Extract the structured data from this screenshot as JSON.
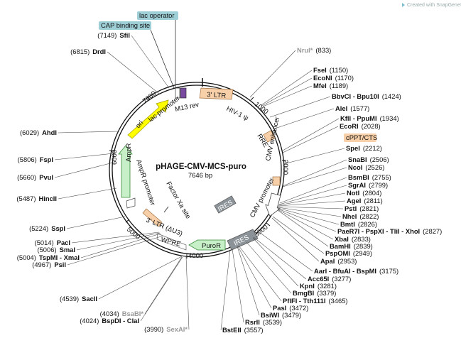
{
  "plasmid": {
    "name": "pHAGE-CMV-MCS-puro",
    "size": "7646 bp"
  },
  "watermark": {
    "text": "Created with SnapGene®"
  },
  "ticks": [
    "1000",
    "2000",
    "3000",
    "4000",
    "5000",
    "6000",
    "7000"
  ],
  "boxes": [
    {
      "text": "lac operator",
      "color": "#9fcfd6"
    },
    {
      "text": "CAP binding site",
      "color": "#9fcfd6"
    },
    {
      "text": "cPPT/CTS",
      "color": "#f7cfa8"
    }
  ],
  "features": [
    {
      "text": "3' LTR",
      "type": "ltr"
    },
    {
      "text": "HIV-1 ψ",
      "type": "misc"
    },
    {
      "text": "RRE",
      "type": "misc"
    },
    {
      "text": "CMV enhancer",
      "type": "enh"
    },
    {
      "text": "CMV promoter",
      "type": "prom"
    },
    {
      "text": "IRES",
      "type": "ires"
    },
    {
      "text": "IRES",
      "type": "ires"
    },
    {
      "text": "PuroR",
      "type": "marker"
    },
    {
      "text": "WPRE",
      "type": "misc"
    },
    {
      "text": "3' LTR (ΔU3)",
      "type": "ltr"
    },
    {
      "text": "Factor Xa site",
      "type": "misc"
    },
    {
      "text": "AmpR promoter",
      "type": "prom"
    },
    {
      "text": "AmpR",
      "type": "marker"
    },
    {
      "text": "ori",
      "type": "ori"
    },
    {
      "text": "lac promoter",
      "type": "prom"
    },
    {
      "text": "M13 rev",
      "type": "misc"
    }
  ],
  "left_sites": [
    {
      "name": "SfiI",
      "pos": "(7149)",
      "grey": false
    },
    {
      "name": "DrdI",
      "pos": "(6815)",
      "grey": false
    },
    {
      "name": "AhdI",
      "pos": "(6029)",
      "grey": false
    },
    {
      "name": "FspI",
      "pos": "(5806)",
      "grey": false
    },
    {
      "name": "PvuI",
      "pos": "(5660)",
      "grey": false
    },
    {
      "name": "HincII",
      "pos": "(5487)",
      "grey": false
    },
    {
      "name": "SspI",
      "pos": "(5224)",
      "grey": false
    },
    {
      "name": "PacI",
      "pos": "(5014)",
      "grey": false
    },
    {
      "name": "SmaI",
      "pos": "(5006)",
      "grey": false
    },
    {
      "name": "TspMI - XmaI",
      "pos": "(5004)",
      "grey": false
    },
    {
      "name": "PsiI",
      "pos": "(4967)",
      "grey": false
    },
    {
      "name": "SacII",
      "pos": "(4539)",
      "grey": false
    },
    {
      "name": "BsaBI*",
      "pos": "(4034)",
      "grey": true
    },
    {
      "name": "BspDI - ClaI",
      "pos": "(4024)",
      "grey": false
    },
    {
      "name": "SexAI*",
      "pos": "(3990)",
      "grey": true
    }
  ],
  "right_sites": [
    {
      "name": "NruI*",
      "pos": "(833)",
      "grey": true
    },
    {
      "name": "FseI",
      "pos": "(1150)",
      "grey": false
    },
    {
      "name": "EcoNI",
      "pos": "(1170)",
      "grey": false
    },
    {
      "name": "MfeI",
      "pos": "(1189)",
      "grey": false
    },
    {
      "name": "BbvCI - Bpu10I",
      "pos": "(1424)",
      "grey": false
    },
    {
      "name": "AleI",
      "pos": "(1577)",
      "grey": false
    },
    {
      "name": "KflI - PpuMI",
      "pos": "(1934)",
      "grey": false
    },
    {
      "name": "EcoRI",
      "pos": "(2028)",
      "grey": false
    },
    {
      "name": "SpeI",
      "pos": "(2212)",
      "grey": false
    },
    {
      "name": "SnaBI",
      "pos": "(2506)",
      "grey": false
    },
    {
      "name": "NcoI",
      "pos": "(2526)",
      "grey": false
    },
    {
      "name": "BsmBI",
      "pos": "(2755)",
      "grey": false
    },
    {
      "name": "SgrAI",
      "pos": "(2799)",
      "grey": false
    },
    {
      "name": "NotI",
      "pos": "(2804)",
      "grey": false
    },
    {
      "name": "AgeI",
      "pos": "(2811)",
      "grey": false
    },
    {
      "name": "PstI",
      "pos": "(2821)",
      "grey": false
    },
    {
      "name": "NheI",
      "pos": "(2822)",
      "grey": false
    },
    {
      "name": "BmtI",
      "pos": "(2826)",
      "grey": false
    },
    {
      "name": "PaeR7I - PspXI - TliI - XhoI",
      "pos": "(2827)",
      "grey": false
    },
    {
      "name": "XbaI",
      "pos": "(2833)",
      "grey": false
    },
    {
      "name": "BamHI",
      "pos": "(2839)",
      "grey": false
    },
    {
      "name": "PspOMI",
      "pos": "(2949)",
      "grey": false
    },
    {
      "name": "ApaI",
      "pos": "(2953)",
      "grey": false
    },
    {
      "name": "AarI - BfuAI - BspMI",
      "pos": "(3175)",
      "grey": false
    },
    {
      "name": "Acc65I",
      "pos": "(3277)",
      "grey": false
    },
    {
      "name": "KpnI",
      "pos": "(3281)",
      "grey": false
    },
    {
      "name": "BmgBI",
      "pos": "(3379)",
      "grey": false
    },
    {
      "name": "PflFI - Tth111I",
      "pos": "(3465)",
      "grey": false
    },
    {
      "name": "PasI",
      "pos": "(3472)",
      "grey": false
    },
    {
      "name": "BsiWI",
      "pos": "(3479)",
      "grey": false
    },
    {
      "name": "RsrII",
      "pos": "(3539)",
      "grey": false
    },
    {
      "name": "BstEII",
      "pos": "(3557)",
      "grey": false
    }
  ]
}
